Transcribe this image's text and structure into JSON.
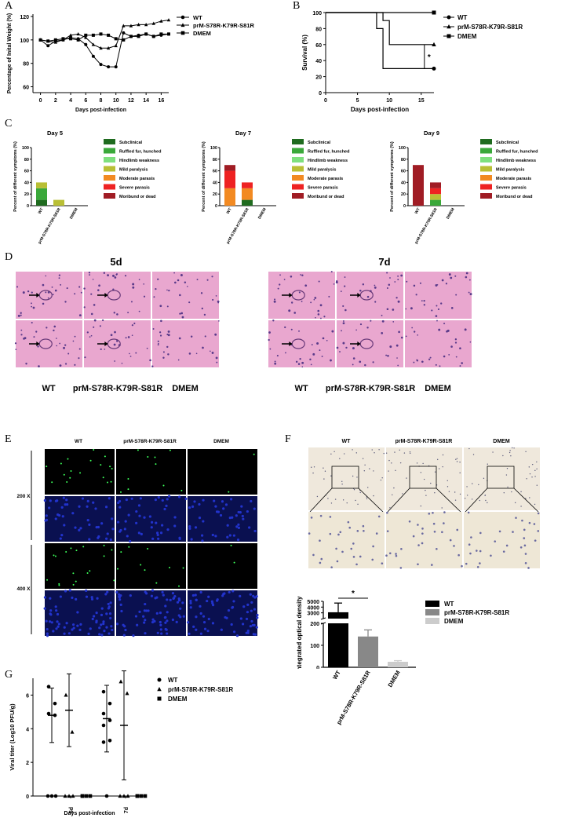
{
  "panels": {
    "A": "A",
    "B": "B",
    "C": "C",
    "D": "D",
    "E": "E",
    "F": "F",
    "G": "G"
  },
  "colors": {
    "Subclinical": "#1f6b1f",
    "Ruffled fur, hunched": "#3aa83a",
    "Hindlimb weakness": "#7ee07e",
    "Mild paralysis": "#b9bf35",
    "Moderate parasis": "#f28a22",
    "Severe parasis": "#ee2222",
    "Moribund or dead": "#a01c24",
    "he_bg": "#e9a7cf",
    "fluor_green": "#3cff5a",
    "fluor_blue": "#2233cc",
    "ihc_bg": "#efe8dc"
  },
  "chart_data": [
    {
      "id": "A",
      "type": "line",
      "ylabel": "Percentage of Inital Weight (%)",
      "xlabel": "Days post-infection",
      "xlim": [
        -1,
        17
      ],
      "ylim": [
        55,
        122
      ],
      "xticks": [
        0,
        2,
        4,
        6,
        8,
        10,
        12,
        14,
        16
      ],
      "yticks": [
        60,
        80,
        100,
        120
      ],
      "legend": [
        "WT",
        "prM-S78R-K79R-S81R",
        "DMEM"
      ],
      "series": [
        {
          "name": "WT",
          "marker": "circle",
          "x": [
            0,
            1,
            2,
            3,
            4,
            5,
            6,
            7,
            8,
            9,
            10,
            11,
            12,
            13,
            14,
            15,
            16,
            17
          ],
          "y": [
            100,
            95,
            99,
            100,
            102,
            101,
            96,
            86,
            79,
            77,
            77,
            106,
            103,
            104,
            105,
            103,
            104,
            105
          ]
        },
        {
          "name": "prM-S78R-K79R-S81R",
          "marker": "triangle",
          "x": [
            0,
            1,
            2,
            3,
            4,
            5,
            6,
            7,
            8,
            9,
            10,
            11,
            12,
            13,
            14,
            15,
            16,
            17
          ],
          "y": [
            100,
            99,
            98,
            100,
            104,
            105,
            102,
            96,
            93,
            93,
            95,
            112,
            112,
            113,
            113,
            114,
            116,
            117
          ]
        },
        {
          "name": "DMEM",
          "marker": "square",
          "x": [
            0,
            1,
            2,
            3,
            4,
            5,
            6,
            7,
            8,
            9,
            10,
            11,
            12,
            13,
            14,
            15,
            16,
            17
          ],
          "y": [
            100,
            99,
            100,
            101,
            101,
            100,
            104,
            104,
            105,
            104,
            101,
            100,
            103,
            103,
            105,
            103,
            105,
            105
          ]
        }
      ]
    },
    {
      "id": "B",
      "type": "line",
      "ylabel": "Survival (%)",
      "xlabel": "Days post-infection",
      "xlim": [
        0,
        17
      ],
      "ylim": [
        0,
        100
      ],
      "xticks": [
        0,
        5,
        10,
        15
      ],
      "yticks": [
        0,
        20,
        40,
        60,
        80,
        100
      ],
      "legend": [
        "WT",
        "prM-S78R-K79R-S81R",
        "DMEM"
      ],
      "annotation": "*",
      "series": [
        {
          "name": "WT",
          "marker": "circle",
          "x": [
            0,
            8,
            8,
            9,
            9,
            17
          ],
          "y": [
            100,
            100,
            80,
            80,
            30,
            30
          ]
        },
        {
          "name": "prM-S78R-K79R-S81R",
          "marker": "triangle",
          "x": [
            0,
            9,
            9,
            10,
            10,
            17
          ],
          "y": [
            100,
            100,
            90,
            90,
            60,
            60
          ]
        },
        {
          "name": "DMEM",
          "marker": "square",
          "x": [
            0,
            17
          ],
          "y": [
            100,
            100
          ]
        }
      ]
    },
    {
      "id": "C",
      "type": "bar",
      "stacked": true,
      "ylabel": "Percent of different symptoms (%)",
      "ylim": [
        0,
        100
      ],
      "yticks": [
        0,
        20,
        40,
        60,
        80,
        100
      ],
      "categories": [
        "WT",
        "prM-S78R-K79R-S81R",
        "DMEM"
      ],
      "symptoms": [
        "Subclinical",
        "Ruffled fur, hunched",
        "Hindlimb weakness",
        "Mild paralysis",
        "Moderate parasis",
        "Severe parasis",
        "Moribund or dead"
      ],
      "days": [
        {
          "title": "Day 5",
          "stacks": [
            [
              {
                "s": "Subclinical",
                "v": 10
              },
              {
                "s": "Ruffled fur, hunched",
                "v": 20
              },
              {
                "s": "Mild paralysis",
                "v": 10
              }
            ],
            [
              {
                "s": "Mild paralysis",
                "v": 10
              }
            ],
            []
          ]
        },
        {
          "title": "Day 7",
          "stacks": [
            [
              {
                "s": "Moderate parasis",
                "v": 30
              },
              {
                "s": "Severe parasis",
                "v": 30
              },
              {
                "s": "Moribund or dead",
                "v": 10
              }
            ],
            [
              {
                "s": "Subclinical",
                "v": 10
              },
              {
                "s": "Moderate parasis",
                "v": 20
              },
              {
                "s": "Severe parasis",
                "v": 10
              }
            ],
            []
          ]
        },
        {
          "title": "Day 9",
          "stacks": [
            [
              {
                "s": "Moribund or dead",
                "v": 70
              }
            ],
            [
              {
                "s": "Ruffled fur, hunched",
                "v": 10
              },
              {
                "s": "Mild paralysis",
                "v": 10
              },
              {
                "s": "Severe parasis",
                "v": 10
              },
              {
                "s": "Moribund or dead",
                "v": 10
              }
            ],
            []
          ]
        }
      ]
    },
    {
      "id": "F",
      "type": "bar",
      "ylabel": "Integrated optical density",
      "categories": [
        "WT",
        "prM-S78R-K79R-S81R",
        "DMEM"
      ],
      "values": [
        3100,
        140,
        25
      ],
      "errors": [
        1600,
        30,
        5
      ],
      "colors": [
        "#000000",
        "#888888",
        "#cccccc"
      ],
      "yticks": [
        0,
        100,
        200,
        3000,
        4000,
        5000
      ],
      "axis_break": [
        200,
        2000
      ],
      "annotation": "*",
      "legend": [
        "WT",
        "prM-S78R-K79R-S81R",
        "DMEM"
      ]
    },
    {
      "id": "G",
      "type": "scatter",
      "ylabel": "Viral titer (Log10 PFU/g)",
      "xlabel": "Days post-infection",
      "ylim": [
        0,
        7
      ],
      "yticks": [
        0,
        2,
        4,
        6
      ],
      "categories": [
        "5d",
        "7d"
      ],
      "legend": [
        "WT",
        "prM-S78R-K79R-S81R",
        "DMEM"
      ],
      "groups": [
        {
          "cat": "5d",
          "series": "WT",
          "marker": "circle",
          "values": [
            6.5,
            5.5,
            4.9,
            4.8,
            0,
            0,
            0
          ],
          "mean": 4.8,
          "sd": 0.9
        },
        {
          "cat": "5d",
          "series": "prM-S78R-K79R-S81R",
          "marker": "triangle",
          "values": [
            6.0,
            3.8,
            0,
            0,
            0
          ],
          "mean": 5.1,
          "sd": 1.2
        },
        {
          "cat": "5d",
          "series": "DMEM",
          "marker": "square",
          "values": [
            0,
            0,
            0,
            0
          ],
          "mean": null,
          "sd": null
        },
        {
          "cat": "7d",
          "series": "WT",
          "marker": "circle",
          "values": [
            6.2,
            5.5,
            4.9,
            4.5,
            4.2,
            3.3,
            3.2,
            0
          ],
          "mean": 4.6,
          "sd": 1.1
        },
        {
          "cat": "7d",
          "series": "prM-S78R-K79R-S81R",
          "marker": "triangle",
          "values": [
            6.8,
            6.1,
            0,
            0,
            0
          ],
          "mean": 4.2,
          "sd": 1.8
        },
        {
          "cat": "7d",
          "series": "DMEM",
          "marker": "square",
          "values": [
            0,
            0,
            0,
            0
          ],
          "mean": null,
          "sd": null
        }
      ]
    }
  ],
  "D": {
    "day5_title": "5d",
    "day7_title": "7d",
    "labels": [
      "WT",
      "prM-S78R-K79R-S81R",
      "DMEM"
    ]
  },
  "E": {
    "cols": [
      "WT",
      "prM-S78R-K79R-S81R",
      "DMEM"
    ],
    "mag1": "200 X",
    "mag2": "400 X"
  },
  "Fimg": {
    "cols": [
      "WT",
      "prM-S78R-K79R-S81R",
      "DMEM"
    ]
  }
}
